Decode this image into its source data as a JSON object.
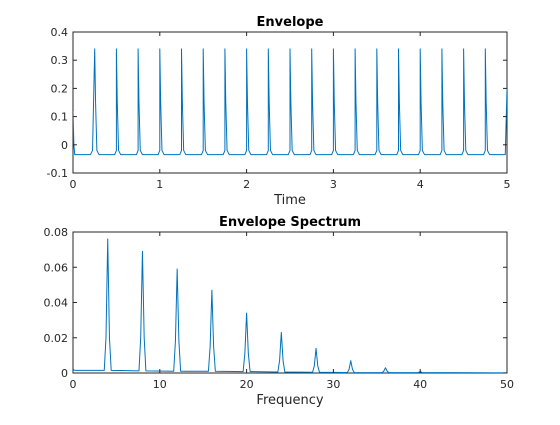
{
  "chart_data": [
    {
      "type": "line",
      "title": "Envelope",
      "xlabel": "Time",
      "ylabel": "",
      "xlim": [
        0,
        5
      ],
      "ylim": [
        -0.1,
        0.4
      ],
      "xticks": [
        0,
        1,
        2,
        3,
        4,
        5
      ],
      "xtick_labels": [
        "0",
        "1",
        "2",
        "3",
        "4",
        "5"
      ],
      "yticks": [
        -0.1,
        0,
        0.1,
        0.2,
        0.3,
        0.4
      ],
      "ytick_labels": [
        "-0.1",
        "0",
        "0.1",
        "0.2",
        "0.3",
        "0.4"
      ],
      "grid": false,
      "line_color": "#0072bd",
      "series": [
        {
          "x": [
            0,
            0.01,
            0.02,
            0.2,
            0.225,
            0.25,
            0.26,
            0.275,
            0.3,
            0.48,
            0.5,
            0.5,
            0.51,
            0.525,
            0.55,
            0.73,
            0.75,
            0.75,
            0.76,
            0.775,
            0.8,
            0.98,
            1.0,
            1.0,
            1.01,
            1.025,
            1.05,
            1.23,
            1.25,
            1.25,
            1.26,
            1.275,
            1.3,
            1.48,
            1.5,
            1.5,
            1.51,
            1.525,
            1.55,
            1.73,
            1.75,
            1.75,
            1.76,
            1.775,
            1.8,
            1.98,
            2.0,
            2.0,
            2.01,
            2.025,
            2.05,
            2.23,
            2.25,
            2.25,
            2.26,
            2.275,
            2.3,
            2.48,
            2.5,
            2.5,
            2.51,
            2.525,
            2.55,
            2.73,
            2.75,
            2.75,
            2.76,
            2.775,
            2.8,
            2.98,
            3.0,
            3.0,
            3.01,
            3.025,
            3.05,
            3.23,
            3.25,
            3.25,
            3.26,
            3.275,
            3.3,
            3.48,
            3.5,
            3.5,
            3.51,
            3.525,
            3.55,
            3.73,
            3.75,
            3.75,
            3.76,
            3.775,
            3.8,
            3.98,
            4.0,
            4.0,
            4.01,
            4.025,
            4.05,
            4.23,
            4.25,
            4.25,
            4.26,
            4.275,
            4.3,
            4.48,
            4.5,
            4.5,
            4.51,
            4.525,
            4.55,
            4.73,
            4.75,
            4.75,
            4.76,
            4.775,
            4.8,
            4.98,
            5.0
          ],
          "y": [
            0.12,
            0.0,
            -0.035,
            -0.035,
            -0.02,
            0.34,
            0.15,
            -0.02,
            -0.035,
            -0.035,
            -0.02,
            0.34,
            0.15,
            -0.02,
            -0.035,
            -0.035,
            -0.02,
            0.34,
            0.15,
            -0.02,
            -0.035,
            -0.035,
            -0.02,
            0.34,
            0.15,
            -0.02,
            -0.035,
            -0.035,
            -0.02,
            0.34,
            0.15,
            -0.02,
            -0.035,
            -0.035,
            -0.02,
            0.34,
            0.15,
            -0.02,
            -0.035,
            -0.035,
            -0.02,
            0.34,
            0.15,
            -0.02,
            -0.035,
            -0.035,
            -0.02,
            0.34,
            0.15,
            -0.02,
            -0.035,
            -0.035,
            -0.02,
            0.34,
            0.15,
            -0.02,
            -0.035,
            -0.035,
            -0.02,
            0.34,
            0.15,
            -0.02,
            -0.035,
            -0.035,
            -0.02,
            0.34,
            0.15,
            -0.02,
            -0.035,
            -0.035,
            -0.02,
            0.34,
            0.15,
            -0.02,
            -0.035,
            -0.035,
            -0.02,
            0.34,
            0.15,
            -0.02,
            -0.035,
            -0.035,
            -0.02,
            0.34,
            0.15,
            -0.02,
            -0.035,
            -0.035,
            -0.02,
            0.34,
            0.15,
            -0.02,
            -0.035,
            -0.035,
            -0.02,
            0.34,
            0.15,
            -0.02,
            -0.035,
            -0.035,
            -0.02,
            0.34,
            0.15,
            -0.02,
            -0.035,
            -0.035,
            -0.02,
            0.34,
            0.15,
            -0.02,
            -0.035,
            -0.035,
            -0.02,
            0.34,
            0.15,
            -0.02,
            -0.035,
            -0.035,
            0.2
          ]
        }
      ]
    },
    {
      "type": "line",
      "title": "Envelope Spectrum",
      "xlabel": "Frequency",
      "ylabel": "",
      "xlim": [
        0,
        50
      ],
      "ylim": [
        0,
        0.08
      ],
      "xticks": [
        0,
        10,
        20,
        30,
        40,
        50
      ],
      "xtick_labels": [
        "0",
        "10",
        "20",
        "30",
        "40",
        "50"
      ],
      "yticks": [
        0,
        0.02,
        0.04,
        0.06,
        0.08
      ],
      "ytick_labels": [
        "0",
        "0.02",
        "0.04",
        "0.06",
        "0.08"
      ],
      "grid": false,
      "line_color": "#0072bd",
      "series": [
        {
          "x": [
            0,
            0.2,
            0.8,
            3.6,
            3.8,
            4.0,
            4.2,
            4.4,
            7.6,
            7.8,
            8.0,
            8.2,
            8.4,
            11.6,
            11.8,
            12.0,
            12.2,
            12.4,
            15.6,
            15.8,
            16.0,
            16.2,
            16.4,
            19.6,
            19.8,
            20.0,
            20.2,
            20.4,
            23.6,
            23.8,
            24.0,
            24.2,
            24.4,
            27.6,
            27.8,
            28.0,
            28.2,
            28.4,
            31.6,
            31.8,
            32.0,
            32.2,
            32.4,
            35.6,
            35.8,
            36.0,
            36.2,
            36.4,
            39.8,
            40.0,
            40.2,
            50.0
          ],
          "y": [
            0.002,
            0.0015,
            0.0015,
            0.0015,
            0.02,
            0.076,
            0.02,
            0.0015,
            0.0012,
            0.02,
            0.069,
            0.02,
            0.0012,
            0.001,
            0.018,
            0.059,
            0.018,
            0.001,
            0.001,
            0.015,
            0.047,
            0.015,
            0.001,
            0.0008,
            0.011,
            0.034,
            0.011,
            0.0008,
            0.0006,
            0.007,
            0.023,
            0.007,
            0.0006,
            0.0004,
            0.004,
            0.014,
            0.004,
            0.0004,
            0.0003,
            0.002,
            0.007,
            0.002,
            0.0003,
            0.0002,
            0.001,
            0.003,
            0.001,
            0.0002,
            0.0003,
            0.0008,
            0.0003,
            0.0001
          ]
        }
      ]
    }
  ]
}
